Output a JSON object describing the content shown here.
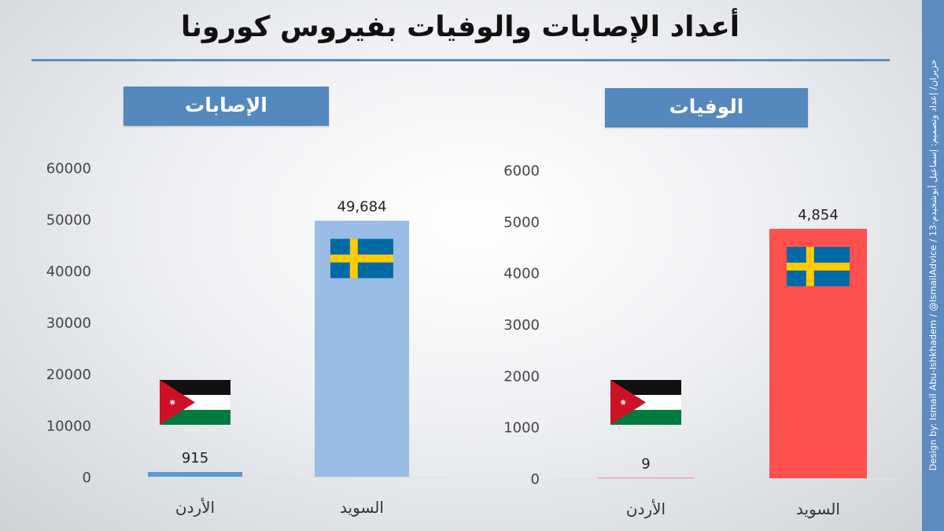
{
  "title": "أعداد الإصابات والوفيات بفيروس كورونا",
  "credit": "Design by: Ismail Abu-Ishkhadem / @IsmailAdvice / 13-حزيران/ إعداد وتصميم: إسماعيل أبوشخيدم",
  "colors": {
    "title_rule": "#5b8dbf",
    "label_bg": "#5588bd",
    "cases_bar": "#98bce4",
    "cases_bar_jordan": "#5b9bd5",
    "deaths_bar": "#ff5050"
  },
  "chart_data": [
    {
      "type": "bar",
      "title": "الإصابات",
      "categories": [
        "الأردن",
        "السويد"
      ],
      "values": [
        915,
        49684
      ],
      "data_labels": [
        "915",
        "49,684"
      ],
      "flags": [
        "jordan-flag",
        "sweden-flag"
      ],
      "ylim": [
        0,
        60000
      ],
      "yticks": [
        0,
        10000,
        20000,
        30000,
        40000,
        50000,
        60000
      ],
      "grid": false
    },
    {
      "type": "bar",
      "title": "الوفيات",
      "categories": [
        "الأردن",
        "السويد"
      ],
      "values": [
        9,
        4854
      ],
      "data_labels": [
        "9",
        "4,854"
      ],
      "flags": [
        "jordan-flag",
        "sweden-flag"
      ],
      "ylim": [
        0,
        6000
      ],
      "yticks": [
        0,
        1000,
        2000,
        3000,
        4000,
        5000,
        6000
      ],
      "grid": false
    }
  ]
}
